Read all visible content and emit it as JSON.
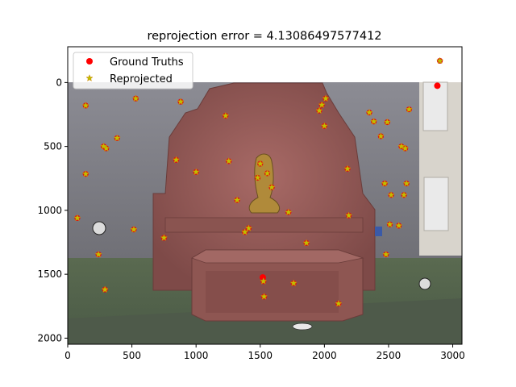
{
  "chart_data": {
    "type": "scatter",
    "title": "reprojection error = 4.13086497577412",
    "xlabel": "",
    "ylabel": "",
    "xlim": [
      0,
      3072
    ],
    "ylim": [
      2048,
      -280
    ],
    "y_inverted": true,
    "x_ticks": [
      0,
      500,
      1000,
      1500,
      2000,
      2500,
      3000
    ],
    "y_ticks": [
      0,
      500,
      1000,
      1500,
      2000
    ],
    "legend_position": "top-left",
    "background": "photo of a red sandstone fountain with a sculpted fish against a grey building wall",
    "series": [
      {
        "name": "Ground Truths",
        "marker": "circle",
        "color": "#ff0000",
        "points": [
          [
            2880,
            25
          ],
          [
            1520,
            1525
          ]
        ]
      },
      {
        "name": "Reprojected",
        "marker": "star",
        "color": "#bfbf00",
        "points": [
          [
            2900,
            -170
          ],
          [
            1525,
            1555
          ],
          [
            140,
            180
          ],
          [
            530,
            125
          ],
          [
            880,
            150
          ],
          [
            1230,
            260
          ],
          [
            280,
            500
          ],
          [
            300,
            515
          ],
          [
            385,
            435
          ],
          [
            845,
            605
          ],
          [
            1255,
            615
          ],
          [
            1000,
            700
          ],
          [
            140,
            715
          ],
          [
            2010,
            125
          ],
          [
            1980,
            175
          ],
          [
            1960,
            220
          ],
          [
            2000,
            340
          ],
          [
            2350,
            235
          ],
          [
            2385,
            305
          ],
          [
            2490,
            310
          ],
          [
            2660,
            210
          ],
          [
            2440,
            420
          ],
          [
            2600,
            500
          ],
          [
            2630,
            515
          ],
          [
            1500,
            635
          ],
          [
            1555,
            710
          ],
          [
            1480,
            745
          ],
          [
            1590,
            820
          ],
          [
            2180,
            675
          ],
          [
            2470,
            790
          ],
          [
            2640,
            790
          ],
          [
            2520,
            880
          ],
          [
            2620,
            880
          ],
          [
            1320,
            920
          ],
          [
            75,
            1060
          ],
          [
            515,
            1150
          ],
          [
            750,
            1215
          ],
          [
            1410,
            1140
          ],
          [
            1380,
            1170
          ],
          [
            1720,
            1015
          ],
          [
            2190,
            1040
          ],
          [
            2510,
            1110
          ],
          [
            2580,
            1120
          ],
          [
            1860,
            1255
          ],
          [
            2480,
            1345
          ],
          [
            240,
            1345
          ],
          [
            1760,
            1570
          ],
          [
            290,
            1620
          ],
          [
            1530,
            1675
          ],
          [
            2110,
            1730
          ]
        ]
      }
    ]
  }
}
